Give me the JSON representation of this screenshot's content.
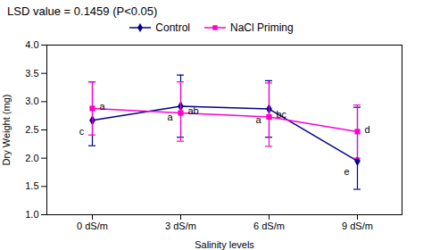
{
  "chart_data": {
    "type": "line",
    "title": "LSD value = 0.1459 (P<0.05)",
    "xlabel": "Salinity levels",
    "ylabel": "Dry Weight (mg)",
    "categories": [
      "0 dS/m",
      "3 dS/m",
      "6 dS/m",
      "9 dS/m"
    ],
    "series": [
      {
        "name": "Control",
        "color": "#00008B",
        "marker": "diamond",
        "values": [
          2.67,
          2.92,
          2.87,
          1.95
        ],
        "yerr_lower": [
          0.45,
          0.55,
          0.5,
          0.5
        ],
        "yerr_upper": [
          0.68,
          0.55,
          0.5,
          0.95
        ],
        "annotations": [
          "c",
          "a",
          "a",
          "e"
        ]
      },
      {
        "name": "NaCl Priming",
        "color": "#FF00CC",
        "marker": "square",
        "values": [
          2.88,
          2.8,
          2.73,
          2.47
        ],
        "yerr_lower": [
          0.47,
          0.5,
          0.52,
          0.47
        ],
        "yerr_upper": [
          0.47,
          0.55,
          0.6,
          0.47
        ],
        "annotations": [
          "a",
          "ab",
          "bc",
          "d"
        ]
      }
    ],
    "ylim": [
      1.0,
      4.0
    ],
    "yticks": [
      {
        "value": 1.0,
        "label": "1.0"
      },
      1.5,
      {
        "value": 2.0,
        "label": "2.0"
      },
      2.5,
      {
        "value": 3.0,
        "label": "3.0"
      },
      3.5,
      {
        "value": 4.0,
        "label": "4.0"
      }
    ],
    "grid": false,
    "legend": "top"
  }
}
